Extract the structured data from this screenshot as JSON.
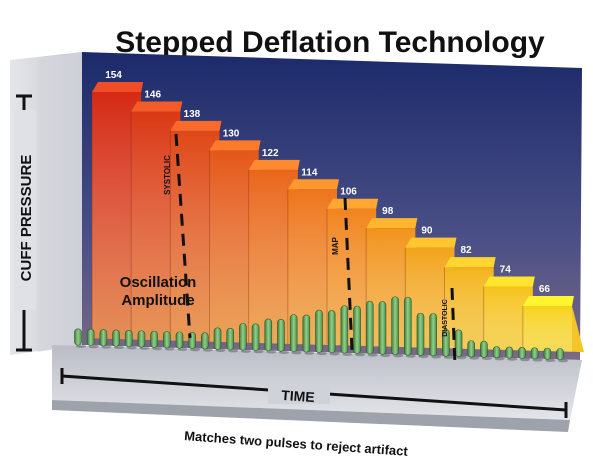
{
  "title": "Stepped Deflation Technology",
  "y_axis_label": "CUFF PRESSURE",
  "x_axis_label": "TIME",
  "caption": "Matches two pulses to reject artifact",
  "oscillation_label": [
    "Oscillation",
    "Amplitude"
  ],
  "markers": {
    "systolic": "SYSTOLIC",
    "map": "MAP",
    "diastolic": "DIASTOLIC"
  },
  "steps": [
    "154",
    "146",
    "138",
    "130",
    "122",
    "114",
    "106",
    "98",
    "90",
    "82",
    "74",
    "66"
  ],
  "pulse_amplitudes": [
    2,
    2,
    2,
    2,
    2,
    2,
    2,
    2,
    2,
    2,
    2,
    3,
    3,
    4,
    4,
    5,
    5,
    6,
    6,
    7,
    7,
    8,
    8,
    9,
    9,
    10,
    10,
    7,
    7,
    4,
    4,
    2,
    2,
    1,
    1,
    1,
    1,
    1,
    1
  ],
  "colors": {
    "background_top": "#1c2a6a",
    "background_bottom": "#6b5578",
    "step_red": "#d52a14",
    "step_yellow": "#f7d21a",
    "pulse_green": "#6db868",
    "floor": "#cfd2d8"
  }
}
